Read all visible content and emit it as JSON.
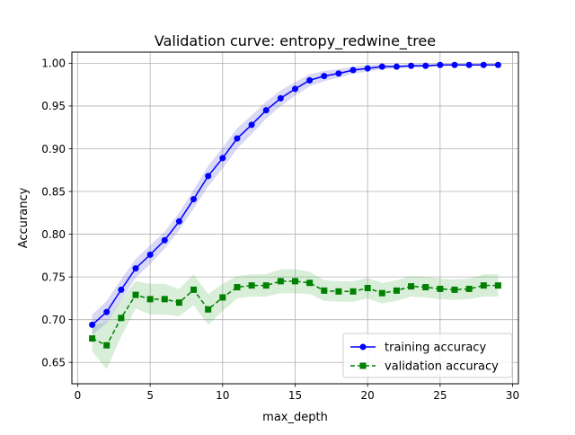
{
  "chart_data": {
    "type": "line",
    "title": "Validation curve: entropy_redwine_tree",
    "xlabel": "max_depth",
    "ylabel": "Accurancy",
    "xlim": [
      -0.4,
      30.4
    ],
    "ylim": [
      0.625,
      1.013
    ],
    "xticks": [
      0,
      5,
      10,
      15,
      20,
      25,
      30
    ],
    "yticks": [
      0.65,
      0.7,
      0.75,
      0.8,
      0.85,
      0.9,
      0.95,
      1.0
    ],
    "grid": true,
    "legend": {
      "position": "lower-right",
      "entries": [
        "training accuracy",
        "validation accuracy"
      ]
    },
    "x": [
      1,
      2,
      3,
      4,
      5,
      6,
      7,
      8,
      9,
      10,
      11,
      12,
      13,
      14,
      15,
      16,
      17,
      18,
      19,
      20,
      21,
      22,
      23,
      24,
      25,
      26,
      27,
      28,
      29
    ],
    "series": [
      {
        "name": "training accuracy",
        "color": "#0000ff",
        "band_color": "#6666dd",
        "line_style": "solid",
        "marker": "circle",
        "values": [
          0.694,
          0.709,
          0.735,
          0.76,
          0.776,
          0.793,
          0.815,
          0.841,
          0.868,
          0.889,
          0.912,
          0.928,
          0.945,
          0.959,
          0.97,
          0.98,
          0.985,
          0.988,
          0.992,
          0.994,
          0.996,
          0.996,
          0.997,
          0.997,
          0.998,
          0.998,
          0.998,
          0.998,
          0.998
        ],
        "std": [
          0.012,
          0.013,
          0.012,
          0.011,
          0.011,
          0.01,
          0.01,
          0.011,
          0.012,
          0.012,
          0.012,
          0.011,
          0.01,
          0.009,
          0.008,
          0.007,
          0.006,
          0.005,
          0.004,
          0.004,
          0.003,
          0.002,
          0.002,
          0.002,
          0.001,
          0.001,
          0.001,
          0.001,
          0.001
        ]
      },
      {
        "name": "validation accuracy",
        "color": "#008000",
        "band_color": "#66bb66",
        "line_style": "dashed",
        "marker": "square",
        "values": [
          0.678,
          0.67,
          0.702,
          0.729,
          0.724,
          0.724,
          0.72,
          0.735,
          0.712,
          0.726,
          0.738,
          0.74,
          0.74,
          0.745,
          0.745,
          0.743,
          0.734,
          0.733,
          0.733,
          0.737,
          0.731,
          0.734,
          0.739,
          0.738,
          0.736,
          0.735,
          0.736,
          0.74,
          0.74
        ],
        "std": [
          0.015,
          0.028,
          0.022,
          0.016,
          0.018,
          0.018,
          0.016,
          0.018,
          0.018,
          0.016,
          0.013,
          0.013,
          0.013,
          0.014,
          0.014,
          0.013,
          0.012,
          0.012,
          0.012,
          0.012,
          0.012,
          0.012,
          0.012,
          0.012,
          0.012,
          0.012,
          0.012,
          0.013,
          0.013
        ]
      }
    ]
  }
}
